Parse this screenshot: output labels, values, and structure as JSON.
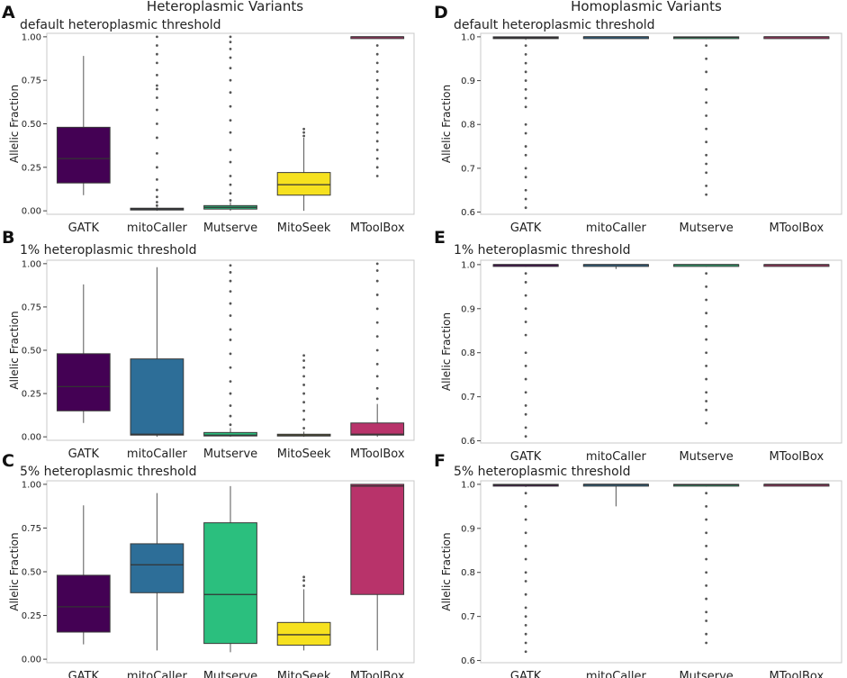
{
  "figure": {
    "left_title": "Heteroplasmic Variants",
    "right_title": "Homoplasmic Variants"
  },
  "colors": {
    "GATK": "#440154",
    "mitoCaller": "#2d6e98",
    "Mutserve": "#2bbf7e",
    "MitoSeek": "#f6e11f",
    "MToolBox": "#b8336a"
  },
  "chart_data": [
    {
      "panel": "A",
      "subtitle": "default heteroplasmic threshold",
      "type": "box",
      "ylabel": "Allelic Fraction",
      "ylim": [
        -0.02,
        1.02
      ],
      "yticks": [
        0.0,
        0.25,
        0.5,
        0.75,
        1.0
      ],
      "ytick_labels": [
        "0.00",
        "0.25",
        "0.50",
        "0.75",
        "1.00"
      ],
      "categories": [
        "GATK",
        "mitoCaller",
        "Mutserve",
        "MitoSeek",
        "MToolBox"
      ],
      "boxes": [
        {
          "name": "GATK",
          "color": "#440154",
          "q1": 0.16,
          "median": 0.3,
          "q3": 0.48,
          "whislo": 0.09,
          "whishi": 0.89,
          "outliers": []
        },
        {
          "name": "mitoCaller",
          "color": "#2d6e98",
          "q1": 0.005,
          "median": 0.01,
          "q3": 0.015,
          "whislo": 0.0,
          "whishi": 0.02,
          "outliers": [
            0.03,
            0.05,
            0.08,
            0.12,
            0.18,
            0.25,
            0.33,
            0.42,
            0.5,
            0.58,
            0.65,
            0.7,
            0.72,
            0.78,
            0.85,
            0.9,
            0.95,
            1.0
          ]
        },
        {
          "name": "Mutserve",
          "color": "#2bbf7e",
          "q1": 0.01,
          "median": 0.02,
          "q3": 0.03,
          "whislo": 0.0,
          "whishi": 0.05,
          "outliers": [
            0.06,
            0.1,
            0.15,
            0.2,
            0.28,
            0.35,
            0.45,
            0.52,
            0.6,
            0.68,
            0.75,
            0.82,
            0.88,
            0.93,
            0.97,
            1.0
          ]
        },
        {
          "name": "MitoSeek",
          "color": "#f6e11f",
          "q1": 0.09,
          "median": 0.15,
          "q3": 0.22,
          "whislo": 0.0,
          "whishi": 0.42,
          "outliers": [
            0.43,
            0.45,
            0.47
          ]
        },
        {
          "name": "MToolBox",
          "color": "#b8336a",
          "q1": 0.995,
          "median": 1.0,
          "q3": 1.0,
          "whislo": 0.99,
          "whishi": 1.0,
          "outliers": [
            0.2,
            0.25,
            0.3,
            0.35,
            0.4,
            0.45,
            0.5,
            0.55,
            0.6,
            0.65,
            0.7,
            0.75,
            0.8,
            0.85,
            0.9,
            0.95
          ]
        }
      ]
    },
    {
      "panel": "B",
      "subtitle": "1% heteroplasmic threshold",
      "type": "box",
      "ylabel": "Allelic Fraction",
      "ylim": [
        -0.02,
        1.02
      ],
      "yticks": [
        0.0,
        0.25,
        0.5,
        0.75,
        1.0
      ],
      "ytick_labels": [
        "0.00",
        "0.25",
        "0.50",
        "0.75",
        "1.00"
      ],
      "categories": [
        "GATK",
        "mitoCaller",
        "Mutserve",
        "MitoSeek",
        "MToolBox"
      ],
      "boxes": [
        {
          "name": "GATK",
          "color": "#440154",
          "q1": 0.15,
          "median": 0.29,
          "q3": 0.48,
          "whislo": 0.08,
          "whishi": 0.88,
          "outliers": []
        },
        {
          "name": "mitoCaller",
          "color": "#2d6e98",
          "q1": 0.01,
          "median": 0.015,
          "q3": 0.45,
          "whislo": 0.0,
          "whishi": 0.98,
          "outliers": []
        },
        {
          "name": "Mutserve",
          "color": "#2bbf7e",
          "q1": 0.005,
          "median": 0.01,
          "q3": 0.025,
          "whislo": 0.0,
          "whishi": 0.05,
          "outliers": [
            0.07,
            0.12,
            0.18,
            0.25,
            0.32,
            0.4,
            0.48,
            0.56,
            0.62,
            0.7,
            0.77,
            0.84,
            0.9,
            0.95,
            0.99
          ]
        },
        {
          "name": "MitoSeek",
          "color": "#f6e11f",
          "q1": 0.005,
          "median": 0.01,
          "q3": 0.015,
          "whislo": 0.0,
          "whishi": 0.03,
          "outliers": [
            0.05,
            0.1,
            0.15,
            0.2,
            0.25,
            0.3,
            0.35,
            0.4,
            0.44,
            0.47
          ]
        },
        {
          "name": "MToolBox",
          "color": "#b8336a",
          "q1": 0.01,
          "median": 0.015,
          "q3": 0.08,
          "whislo": 0.0,
          "whishi": 0.19,
          "outliers": [
            0.22,
            0.28,
            0.35,
            0.42,
            0.5,
            0.58,
            0.66,
            0.74,
            0.82,
            0.9,
            0.96,
            1.0
          ]
        }
      ]
    },
    {
      "panel": "C",
      "subtitle": "5% heteroplasmic threshold",
      "type": "box",
      "ylabel": "Allelic Fraction",
      "ylim": [
        -0.02,
        1.02
      ],
      "yticks": [
        0.0,
        0.25,
        0.5,
        0.75,
        1.0
      ],
      "ytick_labels": [
        "0.00",
        "0.25",
        "0.50",
        "0.75",
        "1.00"
      ],
      "categories": [
        "GATK",
        "mitoCaller",
        "Mutserve",
        "MitoSeek",
        "MToolBox"
      ],
      "boxes": [
        {
          "name": "GATK",
          "color": "#440154",
          "q1": 0.155,
          "median": 0.3,
          "q3": 0.48,
          "whislo": 0.085,
          "whishi": 0.88,
          "outliers": []
        },
        {
          "name": "mitoCaller",
          "color": "#2d6e98",
          "q1": 0.38,
          "median": 0.54,
          "q3": 0.66,
          "whislo": 0.05,
          "whishi": 0.95,
          "outliers": []
        },
        {
          "name": "Mutserve",
          "color": "#2bbf7e",
          "q1": 0.09,
          "median": 0.37,
          "q3": 0.78,
          "whislo": 0.04,
          "whishi": 0.99,
          "outliers": []
        },
        {
          "name": "MitoSeek",
          "color": "#f6e11f",
          "q1": 0.08,
          "median": 0.14,
          "q3": 0.21,
          "whislo": 0.05,
          "whishi": 0.4,
          "outliers": [
            0.42,
            0.45,
            0.47
          ]
        },
        {
          "name": "MToolBox",
          "color": "#b8336a",
          "q1": 0.37,
          "median": 0.99,
          "q3": 1.0,
          "whislo": 0.05,
          "whishi": 1.0,
          "outliers": []
        }
      ]
    },
    {
      "panel": "D",
      "subtitle": "default heteroplasmic threshold",
      "type": "box",
      "ylabel": "Allelic Fraction",
      "ylim": [
        0.595,
        1.008
      ],
      "yticks": [
        0.6,
        0.7,
        0.8,
        0.9,
        1.0
      ],
      "ytick_labels": [
        "0.6",
        "0.7",
        "0.8",
        "0.9",
        "1.0"
      ],
      "categories": [
        "GATK",
        "mitoCaller",
        "Mutserve",
        "MToolBox"
      ],
      "boxes": [
        {
          "name": "GATK",
          "color": "#440154",
          "q1": 0.997,
          "median": 0.998,
          "q3": 1.0,
          "whislo": 0.993,
          "whishi": 1.0,
          "outliers": [
            0.98,
            0.96,
            0.94,
            0.92,
            0.9,
            0.88,
            0.86,
            0.84,
            0.8,
            0.78,
            0.75,
            0.73,
            0.7,
            0.68,
            0.65,
            0.63,
            0.61
          ]
        },
        {
          "name": "mitoCaller",
          "color": "#2d6e98",
          "q1": 0.999,
          "median": 1.0,
          "q3": 1.0,
          "whislo": 0.999,
          "whishi": 1.0,
          "outliers": []
        },
        {
          "name": "Mutserve",
          "color": "#2bbf7e",
          "q1": 0.998,
          "median": 0.999,
          "q3": 1.0,
          "whislo": 0.995,
          "whishi": 1.0,
          "outliers": [
            0.98,
            0.95,
            0.92,
            0.88,
            0.85,
            0.82,
            0.79,
            0.76,
            0.73,
            0.71,
            0.69,
            0.66,
            0.64
          ]
        },
        {
          "name": "MToolBox",
          "color": "#b8336a",
          "q1": 0.999,
          "median": 1.0,
          "q3": 1.0,
          "whislo": 0.999,
          "whishi": 1.0,
          "outliers": []
        }
      ]
    },
    {
      "panel": "E",
      "subtitle": "1% heteroplasmic threshold",
      "type": "box",
      "ylabel": "Allelic Fraction",
      "ylim": [
        0.595,
        1.01
      ],
      "yticks": [
        0.6,
        0.7,
        0.8,
        0.9,
        1.0
      ],
      "ytick_labels": [
        "0.6",
        "0.7",
        "0.8",
        "0.9",
        "1.0"
      ],
      "categories": [
        "GATK",
        "mitoCaller",
        "Mutserve",
        "MToolBox"
      ],
      "boxes": [
        {
          "name": "GATK",
          "color": "#440154",
          "q1": 0.999,
          "median": 1.0,
          "q3": 1.0,
          "whislo": 0.995,
          "whishi": 1.0,
          "outliers": [
            0.98,
            0.96,
            0.93,
            0.9,
            0.87,
            0.84,
            0.8,
            0.77,
            0.74,
            0.71,
            0.68,
            0.66,
            0.63,
            0.61
          ]
        },
        {
          "name": "mitoCaller",
          "color": "#2d6e98",
          "q1": 0.999,
          "median": 1.0,
          "q3": 1.0,
          "whislo": 0.99,
          "whishi": 1.0,
          "outliers": []
        },
        {
          "name": "Mutserve",
          "color": "#2bbf7e",
          "q1": 0.999,
          "median": 1.0,
          "q3": 1.0,
          "whislo": 0.995,
          "whishi": 1.0,
          "outliers": [
            0.98,
            0.95,
            0.92,
            0.89,
            0.86,
            0.83,
            0.8,
            0.77,
            0.74,
            0.71,
            0.69,
            0.67,
            0.64
          ]
        },
        {
          "name": "MToolBox",
          "color": "#b8336a",
          "q1": 0.999,
          "median": 1.0,
          "q3": 1.0,
          "whislo": 0.999,
          "whishi": 1.0,
          "outliers": []
        }
      ]
    },
    {
      "panel": "F",
      "subtitle": "5% heteroplasmic threshold",
      "type": "box",
      "ylabel": "Allelic Fraction",
      "ylim": [
        0.595,
        1.008
      ],
      "yticks": [
        0.6,
        0.7,
        0.8,
        0.9,
        1.0
      ],
      "ytick_labels": [
        "0.6",
        "0.7",
        "0.8",
        "0.9",
        "1.0"
      ],
      "categories": [
        "GATK",
        "mitoCaller",
        "Mutserve",
        "MToolBox"
      ],
      "boxes": [
        {
          "name": "GATK",
          "color": "#440154",
          "q1": 0.998,
          "median": 0.999,
          "q3": 1.0,
          "whislo": 0.994,
          "whishi": 1.0,
          "outliers": [
            0.98,
            0.95,
            0.92,
            0.89,
            0.86,
            0.83,
            0.8,
            0.78,
            0.75,
            0.72,
            0.7,
            0.68,
            0.66,
            0.64,
            0.62
          ]
        },
        {
          "name": "mitoCaller",
          "color": "#2d6e98",
          "q1": 0.999,
          "median": 1.0,
          "q3": 1.0,
          "whislo": 0.95,
          "whishi": 1.0,
          "outliers": []
        },
        {
          "name": "Mutserve",
          "color": "#2bbf7e",
          "q1": 0.998,
          "median": 0.999,
          "q3": 1.0,
          "whislo": 0.995,
          "whishi": 1.0,
          "outliers": [
            0.98,
            0.95,
            0.92,
            0.89,
            0.86,
            0.83,
            0.8,
            0.77,
            0.74,
            0.71,
            0.69,
            0.66,
            0.64
          ]
        },
        {
          "name": "MToolBox",
          "color": "#b8336a",
          "q1": 0.999,
          "median": 1.0,
          "q3": 1.0,
          "whislo": 0.999,
          "whishi": 1.0,
          "outliers": []
        }
      ]
    }
  ]
}
